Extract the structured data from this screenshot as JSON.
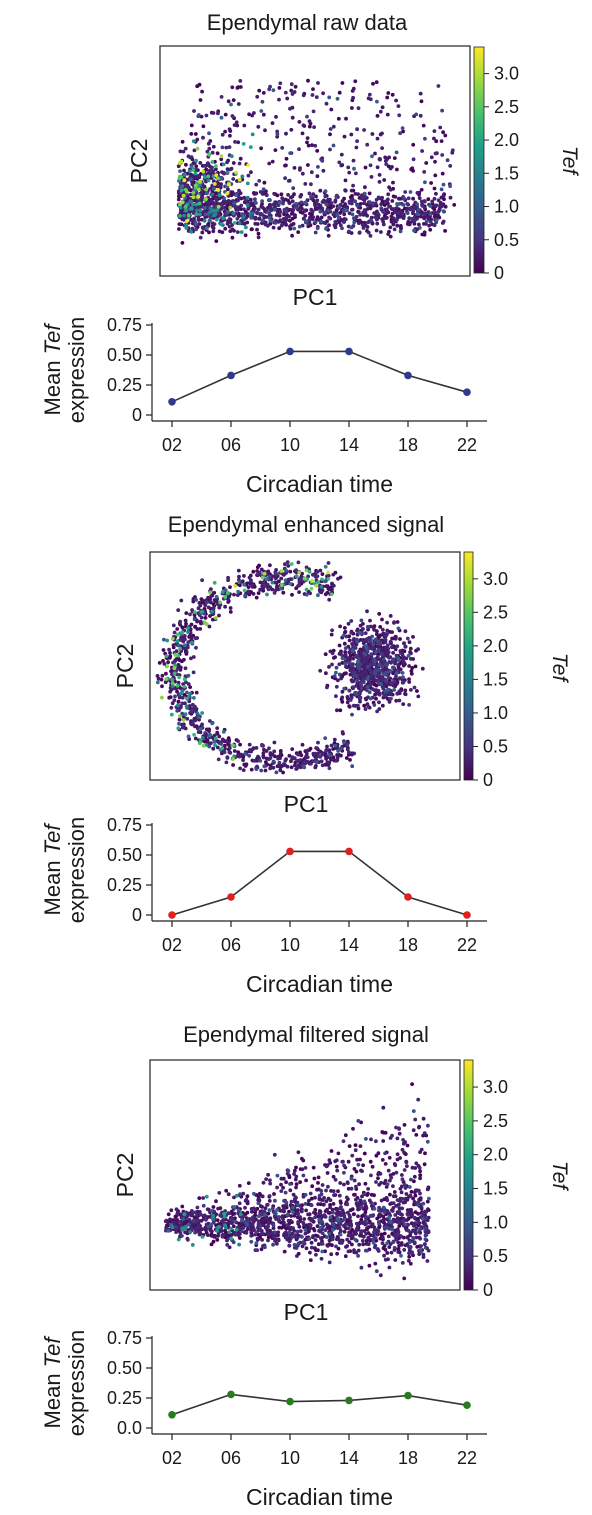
{
  "chart_data": [
    {
      "type": "scatter",
      "title": "Ependymal raw data",
      "xlabel": "PC1",
      "ylabel": "PC2",
      "colorbar": {
        "label": "Tef",
        "ticks": [
          "0",
          "0.5",
          "1.0",
          "1.5",
          "2.0",
          "2.5",
          "3.0"
        ],
        "range": [
          0,
          3.4
        ],
        "colormap": "viridis"
      },
      "shape": "blob"
    },
    {
      "type": "line",
      "xlabel": "Circadian time",
      "ylabel_lines": [
        "Mean ",
        "Tef",
        "expression"
      ],
      "categories": [
        "02",
        "06",
        "10",
        "14",
        "18",
        "22"
      ],
      "values": [
        0.11,
        0.33,
        0.53,
        0.53,
        0.33,
        0.19
      ],
      "yticks": [
        "0",
        "0.25",
        "0.50",
        "0.75"
      ],
      "ylim": [
        0,
        0.75
      ],
      "marker_color": "#2e3a8c"
    },
    {
      "type": "scatter",
      "title": "Ependymal enhanced signal",
      "xlabel": "PC1",
      "ylabel": "PC2",
      "colorbar": {
        "label": "Tef",
        "ticks": [
          "0",
          "0.5",
          "1.0",
          "1.5",
          "2.0",
          "2.5",
          "3.0"
        ],
        "range": [
          0,
          3.4
        ],
        "colormap": "viridis"
      },
      "shape": "ring"
    },
    {
      "type": "line",
      "xlabel": "Circadian time",
      "ylabel_lines": [
        "Mean ",
        "Tef",
        "expression"
      ],
      "categories": [
        "02",
        "06",
        "10",
        "14",
        "18",
        "22"
      ],
      "values": [
        0.0,
        0.15,
        0.53,
        0.53,
        0.15,
        0.0
      ],
      "yticks": [
        "0",
        "0.25",
        "0.50",
        "0.75"
      ],
      "ylim": [
        0,
        0.75
      ],
      "marker_color": "#e0201b"
    },
    {
      "type": "scatter",
      "title": "Ependymal filtered signal",
      "xlabel": "PC1",
      "ylabel": "PC2",
      "colorbar": {
        "label": "Tef",
        "ticks": [
          "0",
          "0.5",
          "1.0",
          "1.5",
          "2.0",
          "2.5",
          "3.0"
        ],
        "range": [
          0,
          3.4
        ],
        "colormap": "viridis"
      },
      "shape": "fan"
    },
    {
      "type": "line",
      "xlabel": "Circadian time",
      "ylabel_lines": [
        "Mean ",
        "Tef",
        "expression"
      ],
      "categories": [
        "02",
        "06",
        "10",
        "14",
        "18",
        "22"
      ],
      "values": [
        0.11,
        0.28,
        0.22,
        0.23,
        0.27,
        0.19
      ],
      "yticks": [
        "0.0",
        "0.25",
        "0.50",
        "0.75"
      ],
      "ylim": [
        0,
        0.75
      ],
      "marker_color": "#2a7a1f"
    }
  ]
}
